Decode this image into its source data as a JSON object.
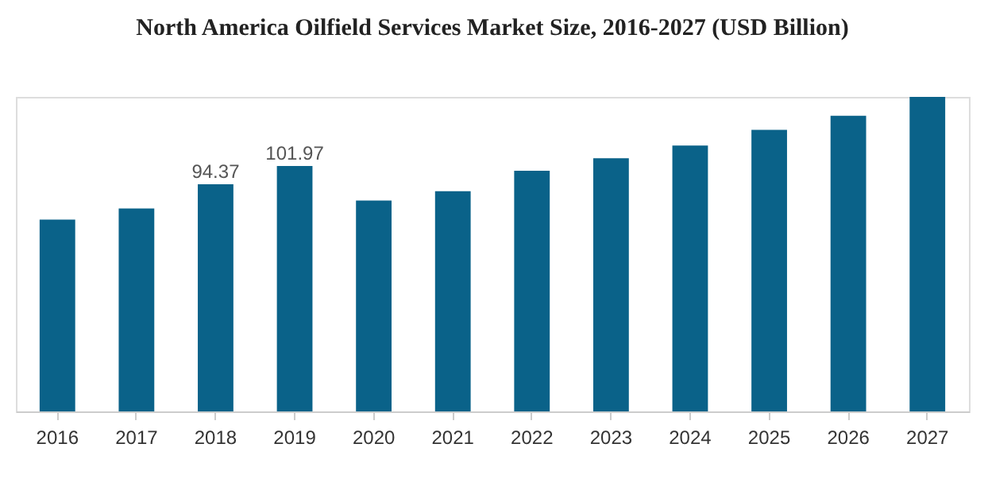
{
  "chart_data": {
    "type": "bar",
    "title": "North America Oilfield Services Market Size, 2016-2027 (USD Billion)",
    "categories": [
      "2016",
      "2017",
      "2018",
      "2019",
      "2020",
      "2021",
      "2022",
      "2023",
      "2024",
      "2025",
      "2026",
      "2027"
    ],
    "values": [
      79.7,
      84.3,
      94.37,
      101.97,
      87.6,
      91.5,
      100.0,
      105.2,
      110.5,
      117.0,
      122.9,
      130.7
    ],
    "value_labels": [
      null,
      null,
      "94.37",
      "101.97",
      null,
      null,
      null,
      null,
      null,
      null,
      null,
      null
    ],
    "color": "#0a6289",
    "grid": false,
    "tick_labels": "x"
  }
}
